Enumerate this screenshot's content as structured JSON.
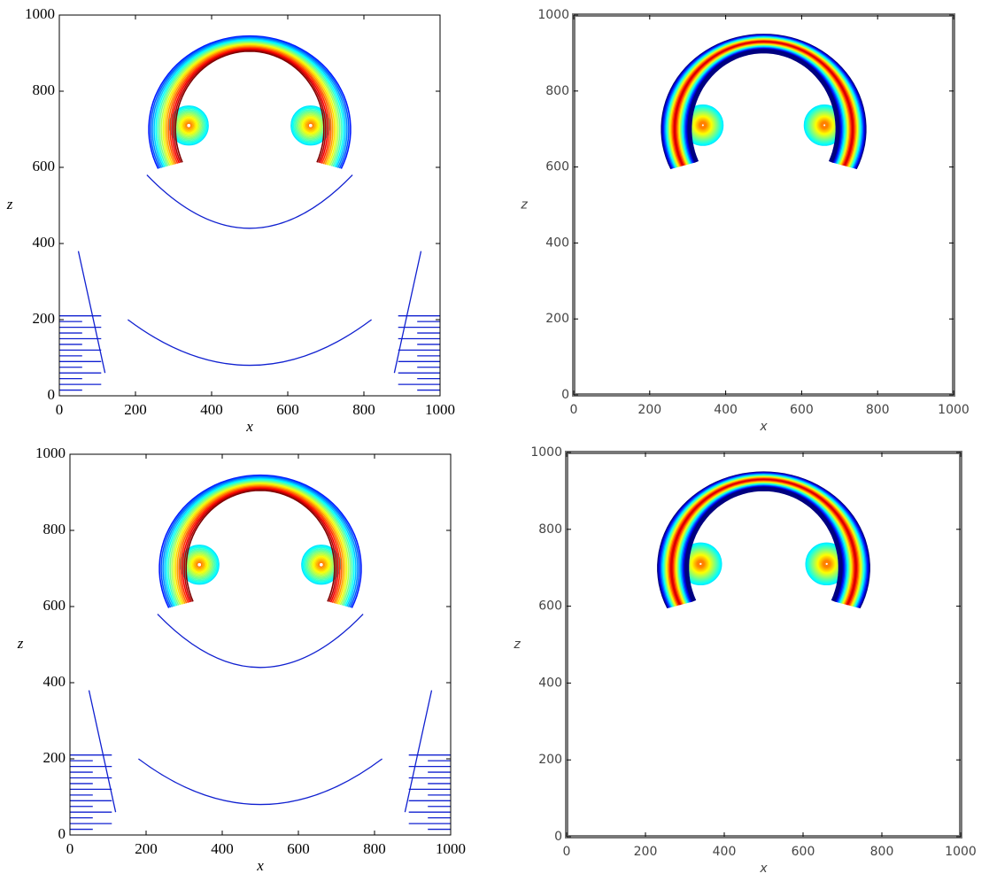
{
  "chart_data": [
    {
      "type": "contour",
      "style": "lines",
      "xlabel": "x",
      "ylabel": "z",
      "xlim": [
        0,
        1000
      ],
      "ylim": [
        0,
        1000
      ],
      "xticks": [
        0,
        200,
        400,
        600,
        800,
        1000
      ],
      "yticks": [
        0,
        200,
        400,
        600,
        800,
        1000
      ],
      "colormap": "jet"
    },
    {
      "type": "contour",
      "style": "filled",
      "xlabel": "x",
      "ylabel": "z",
      "xlim": [
        0,
        1000
      ],
      "ylim": [
        0,
        1000
      ],
      "xticks": [
        0,
        200,
        400,
        600,
        800,
        1000
      ],
      "yticks": [
        0,
        200,
        400,
        600,
        800,
        1000
      ],
      "colormap": "jet"
    },
    {
      "type": "contour",
      "style": "lines",
      "xlabel": "x",
      "ylabel": "z",
      "xlim": [
        0,
        1000
      ],
      "ylim": [
        0,
        1000
      ],
      "xticks": [
        0,
        200,
        400,
        600,
        800,
        1000
      ],
      "yticks": [
        0,
        200,
        400,
        600,
        800,
        1000
      ],
      "colormap": "jet"
    },
    {
      "type": "contour",
      "style": "filled",
      "xlabel": "x",
      "ylabel": "z",
      "xlim": [
        0,
        1000
      ],
      "ylim": [
        0,
        1000
      ],
      "xticks": [
        0,
        200,
        400,
        600,
        800,
        1000
      ],
      "yticks": [
        0,
        200,
        400,
        600,
        800,
        1000
      ],
      "colormap": "jet"
    }
  ]
}
